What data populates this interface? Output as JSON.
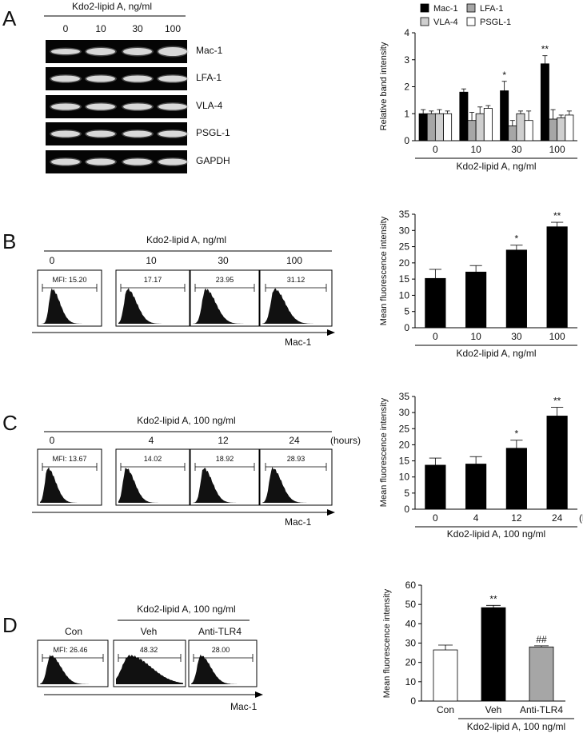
{
  "panels": {
    "A": {
      "letter": "A",
      "gel_header": "Kdo2-lipid A, ng/ml",
      "lanes": [
        "0",
        "10",
        "30",
        "100"
      ],
      "genes": [
        "Mac-1",
        "LFA-1",
        "VLA-4",
        "PSGL-1",
        "GAPDH"
      ]
    },
    "B": {
      "letter": "B",
      "header": "Kdo2-lipid A, ng/ml",
      "columns": [
        "0",
        "10",
        "30",
        "100"
      ],
      "mfi": [
        "MFI: 15.20",
        "17.17",
        "23.95",
        "31.12"
      ],
      "arrow_label": "Mac-1"
    },
    "C": {
      "letter": "C",
      "header": "Kdo2-lipid A, 100 ng/ml",
      "columns": [
        "0",
        "4",
        "12",
        "24"
      ],
      "columns_unit": "(hours)",
      "mfi": [
        "MFI: 13.67",
        "14.02",
        "18.92",
        "28.93"
      ],
      "arrow_label": "Mac-1"
    },
    "D": {
      "letter": "D",
      "header": "Kdo2-lipid A, 100 ng/ml",
      "columns": [
        "Con",
        "Veh",
        "Anti-TLR4"
      ],
      "mfi": [
        "MFI: 26.46",
        "48.32",
        "28.00"
      ],
      "arrow_label": "Mac-1"
    }
  },
  "colors": {
    "black": "#000000",
    "gray": "#a6a6a6",
    "white": "#ffffff"
  },
  "chart_data": [
    {
      "panel": "A",
      "type": "bar",
      "categories": [
        "0",
        "10",
        "30",
        "100"
      ],
      "xlabel": "Kdo2-lipid A, ng/ml",
      "ylabel": "Relative band intensity",
      "ylim": [
        0,
        4
      ],
      "yticks": [
        "0",
        "1",
        "2",
        "3",
        "4"
      ],
      "legend": "top",
      "series": [
        {
          "name": "Mac-1",
          "color": "#000000",
          "values": [
            1.0,
            1.8,
            1.85,
            2.85
          ],
          "errors": [
            0.15,
            0.12,
            0.35,
            0.3
          ]
        },
        {
          "name": "LFA-1",
          "color": "#a6a6a6",
          "values": [
            1.0,
            0.75,
            0.55,
            0.8
          ],
          "errors": [
            0.1,
            0.3,
            0.2,
            0.35
          ]
        },
        {
          "name": "VLA-4",
          "color": "#cfcfcf",
          "values": [
            1.0,
            1.0,
            1.0,
            0.85
          ],
          "errors": [
            0.15,
            0.25,
            0.1,
            0.1
          ]
        },
        {
          "name": "PSGL-1",
          "color": "#ffffff",
          "values": [
            1.0,
            1.2,
            0.75,
            0.95
          ],
          "errors": [
            0.1,
            0.1,
            0.35,
            0.15
          ]
        }
      ],
      "annotations": [
        "",
        "",
        "*",
        "**"
      ]
    },
    {
      "panel": "B",
      "type": "bar",
      "categories": [
        "0",
        "10",
        "30",
        "100"
      ],
      "xlabel": "Kdo2-lipid A, ng/ml",
      "ylabel": "Mean fluorescence  intensity",
      "ylim": [
        0,
        35
      ],
      "yticks": [
        "0",
        "5",
        "10",
        "15",
        "20",
        "25",
        "30",
        "35"
      ],
      "series": [
        {
          "values": [
            15.2,
            17.17,
            23.95,
            31.12
          ],
          "errors": [
            2.8,
            2.0,
            1.5,
            1.4
          ],
          "colors": [
            "#000000",
            "#000000",
            "#000000",
            "#000000"
          ]
        }
      ],
      "annotations": [
        "",
        "",
        "*",
        "**"
      ]
    },
    {
      "panel": "C",
      "type": "bar",
      "categories": [
        "0",
        "4",
        "12",
        "24"
      ],
      "x_unit": "(hours)",
      "xlabel": "Kdo2-lipid A, 100 ng/ml",
      "ylabel": "Mean fluorescence  intensity",
      "ylim": [
        0,
        35
      ],
      "yticks": [
        "0",
        "5",
        "10",
        "15",
        "20",
        "25",
        "30",
        "35"
      ],
      "series": [
        {
          "values": [
            13.67,
            14.02,
            18.92,
            28.93
          ],
          "errors": [
            2.2,
            2.3,
            2.5,
            2.7
          ],
          "colors": [
            "#000000",
            "#000000",
            "#000000",
            "#000000"
          ]
        }
      ],
      "annotations": [
        "",
        "",
        "*",
        "**"
      ]
    },
    {
      "panel": "D",
      "type": "bar",
      "categories": [
        "Con",
        "Veh",
        "Anti-TLR4"
      ],
      "xlabel": "Kdo2-lipid A, 100 ng/ml",
      "ylabel": "Mean fluorescence  intensity",
      "ylim": [
        0,
        60
      ],
      "yticks": [
        "0",
        "10",
        "20",
        "30",
        "40",
        "50",
        "60"
      ],
      "series": [
        {
          "values": [
            26.46,
            48.32,
            28.0
          ],
          "errors": [
            2.5,
            1.2,
            0.6
          ],
          "colors": [
            "#ffffff",
            "#000000",
            "#a6a6a6"
          ]
        }
      ],
      "annotations": [
        "",
        "**",
        "##"
      ]
    }
  ]
}
